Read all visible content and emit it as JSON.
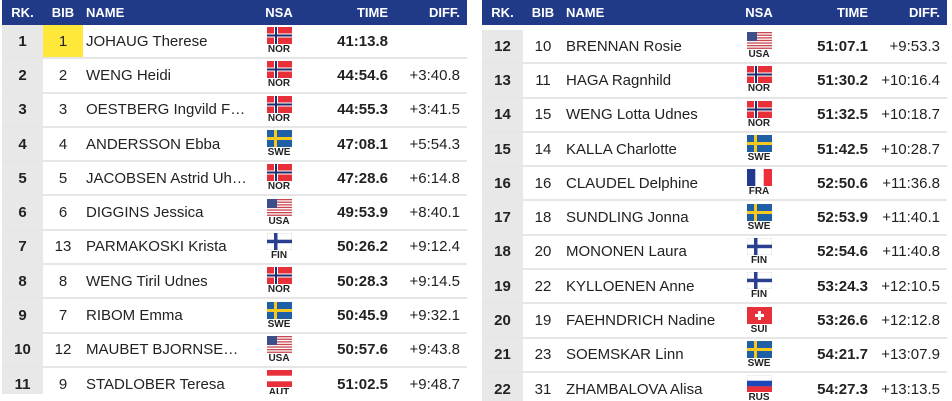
{
  "headers": {
    "rank": "RK.",
    "bib": "BIB",
    "name": "NAME",
    "nsa": "NSA",
    "time": "TIME",
    "diff": "DIFF."
  },
  "highlight_color": "#ffe83a",
  "header_color": "#213a87",
  "left_rows": [
    {
      "rank": "1",
      "bib": "1",
      "name": "JOHAUG Therese",
      "nsa": "NOR",
      "time": "41:13.8",
      "diff": "",
      "highlight": true
    },
    {
      "rank": "2",
      "bib": "2",
      "name": "WENG Heidi",
      "nsa": "NOR",
      "time": "44:54.6",
      "diff": "+3:40.8"
    },
    {
      "rank": "3",
      "bib": "3",
      "name": "OESTBERG Ingvild F…",
      "nsa": "NOR",
      "time": "44:55.3",
      "diff": "+3:41.5"
    },
    {
      "rank": "4",
      "bib": "4",
      "name": "ANDERSSON Ebba",
      "nsa": "SWE",
      "time": "47:08.1",
      "diff": "+5:54.3"
    },
    {
      "rank": "5",
      "bib": "5",
      "name": "JACOBSEN Astrid Uh…",
      "nsa": "NOR",
      "time": "47:28.6",
      "diff": "+6:14.8"
    },
    {
      "rank": "6",
      "bib": "6",
      "name": "DIGGINS Jessica",
      "nsa": "USA",
      "time": "49:53.9",
      "diff": "+8:40.1"
    },
    {
      "rank": "7",
      "bib": "13",
      "name": "PARMAKOSKI Krista",
      "nsa": "FIN",
      "time": "50:26.2",
      "diff": "+9:12.4"
    },
    {
      "rank": "8",
      "bib": "8",
      "name": "WENG Tiril Udnes",
      "nsa": "NOR",
      "time": "50:28.3",
      "diff": "+9:14.5"
    },
    {
      "rank": "9",
      "bib": "7",
      "name": "RIBOM Emma",
      "nsa": "SWE",
      "time": "50:45.9",
      "diff": "+9:32.1"
    },
    {
      "rank": "10",
      "bib": "12",
      "name": "MAUBET BJORNSE…",
      "nsa": "USA",
      "time": "50:57.6",
      "diff": "+9:43.8"
    },
    {
      "rank": "11",
      "bib": "9",
      "name": "STADLOBER Teresa",
      "nsa": "AUT",
      "time": "51:02.5",
      "diff": "+9:48.7"
    }
  ],
  "right_rows": [
    {
      "rank": "12",
      "bib": "10",
      "name": "BRENNAN Rosie",
      "nsa": "USA",
      "time": "51:07.1",
      "diff": "+9:53.3"
    },
    {
      "rank": "13",
      "bib": "11",
      "name": "HAGA Ragnhild",
      "nsa": "NOR",
      "time": "51:30.2",
      "diff": "+10:16.4"
    },
    {
      "rank": "14",
      "bib": "15",
      "name": "WENG Lotta Udnes",
      "nsa": "NOR",
      "time": "51:32.5",
      "diff": "+10:18.7"
    },
    {
      "rank": "15",
      "bib": "14",
      "name": "KALLA Charlotte",
      "nsa": "SWE",
      "time": "51:42.5",
      "diff": "+10:28.7"
    },
    {
      "rank": "16",
      "bib": "16",
      "name": "CLAUDEL Delphine",
      "nsa": "FRA",
      "time": "52:50.6",
      "diff": "+11:36.8"
    },
    {
      "rank": "17",
      "bib": "18",
      "name": "SUNDLING Jonna",
      "nsa": "SWE",
      "time": "52:53.9",
      "diff": "+11:40.1"
    },
    {
      "rank": "18",
      "bib": "20",
      "name": "MONONEN Laura",
      "nsa": "FIN",
      "time": "52:54.6",
      "diff": "+11:40.8"
    },
    {
      "rank": "19",
      "bib": "22",
      "name": "KYLLOENEN Anne",
      "nsa": "FIN",
      "time": "53:24.3",
      "diff": "+12:10.5"
    },
    {
      "rank": "20",
      "bib": "19",
      "name": "FAEHNDRICH Nadine",
      "nsa": "SUI",
      "time": "53:26.6",
      "diff": "+12:12.8"
    },
    {
      "rank": "21",
      "bib": "23",
      "name": "SOEMSKAR Linn",
      "nsa": "SWE",
      "time": "54:21.7",
      "diff": "+13:07.9"
    },
    {
      "rank": "22",
      "bib": "31",
      "name": "ZHAMBALOVA Alisa",
      "nsa": "RUS",
      "time": "54:27.3",
      "diff": "+13:13.5"
    }
  ]
}
